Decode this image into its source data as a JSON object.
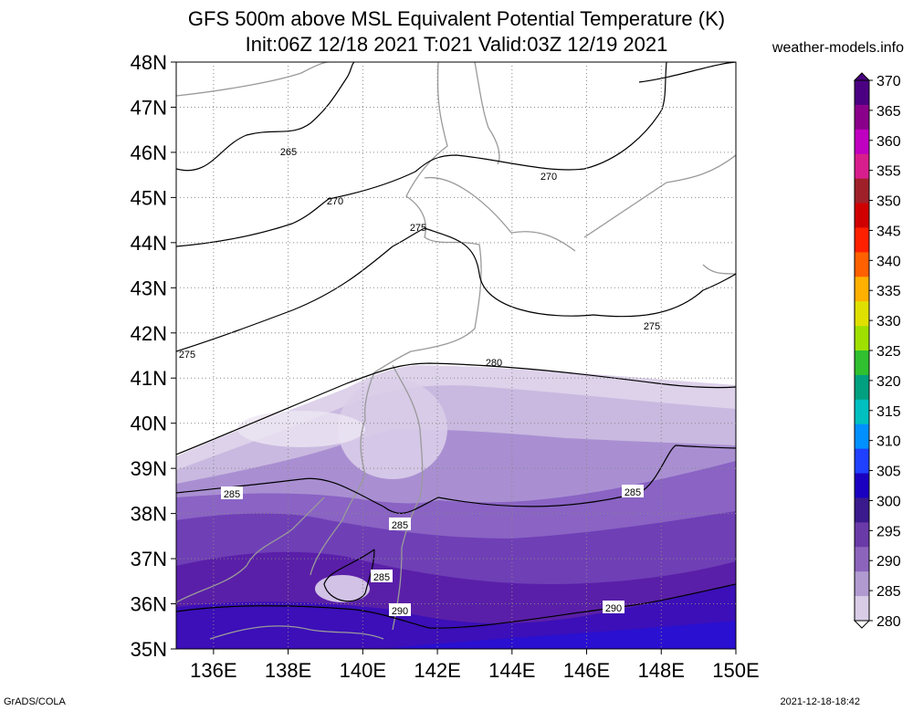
{
  "title_line1": "GFS 500m above MSL Equivalent Potential Temperature (K)",
  "title_line2": "Init:06Z 12/18 2021 T:021 Valid:03Z 12/19 2021",
  "site": "weather-models.info",
  "footer_left": "GrADS/COLA",
  "footer_right": "2021-12-18-18:42",
  "lat_labels": [
    "48N",
    "47N",
    "46N",
    "45N",
    "44N",
    "43N",
    "42N",
    "41N",
    "40N",
    "39N",
    "38N",
    "37N",
    "36N",
    "35N"
  ],
  "lon_labels": [
    "136E",
    "138E",
    "140E",
    "142E",
    "144E",
    "146E",
    "148E",
    "150E"
  ],
  "contour_labels": [
    "265",
    "270",
    "270",
    "275",
    "275",
    "275",
    "280",
    "285",
    "285",
    "285",
    "285",
    "290",
    "290"
  ],
  "colorbar": {
    "labels": [
      "370",
      "365",
      "360",
      "355",
      "350",
      "345",
      "340",
      "335",
      "330",
      "325",
      "320",
      "315",
      "310",
      "305",
      "300",
      "295",
      "290",
      "285",
      "280"
    ],
    "colors": [
      "#4b0082",
      "#8b008b",
      "#c000c0",
      "#d81e8c",
      "#a0202a",
      "#d00000",
      "#ff2000",
      "#ff6000",
      "#ffb000",
      "#e0e000",
      "#a0e000",
      "#30c030",
      "#00a080",
      "#00c0c0",
      "#0090ff",
      "#2040ff",
      "#1a00c0",
      "#3a1a8c",
      "#6a3aa8",
      "#8c64bc",
      "#b09ad0",
      "#d8cce6"
    ]
  }
}
